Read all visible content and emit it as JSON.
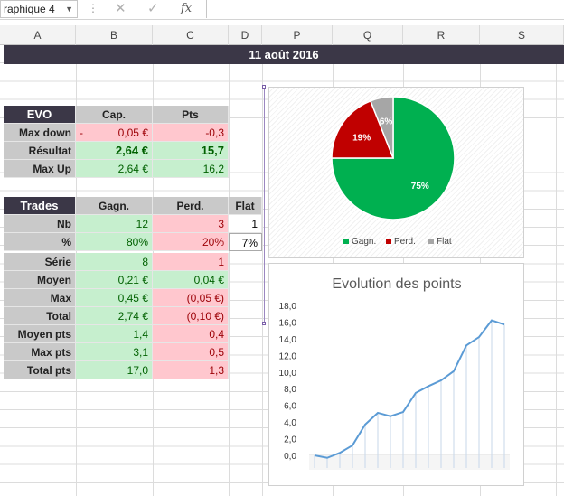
{
  "formula_bar": {
    "name_box": "raphique 4",
    "fx": "fx"
  },
  "columns": [
    "A",
    "B",
    "C",
    "D",
    "P",
    "Q",
    "R",
    "S"
  ],
  "title": "11 août 2016",
  "evo": {
    "header": [
      "EVO",
      "Cap.",
      "Pts"
    ],
    "rows": [
      {
        "label": "Max down",
        "prefix": "-",
        "cap": "0,05 €",
        "pts": "-0,3"
      },
      {
        "label": "Résultat",
        "cap": "2,64 €",
        "pts": "15,7"
      },
      {
        "label": "Max Up",
        "cap": "2,64 €",
        "pts": "16,2"
      }
    ]
  },
  "trades": {
    "header": [
      "Trades",
      "Gagn.",
      "Perd.",
      "Flat"
    ],
    "rows": [
      {
        "label": "Nb",
        "gagn": "12",
        "perd": "3",
        "flat": "1"
      },
      {
        "label": "%",
        "gagn": "80%",
        "perd": "20%",
        "flat": "7%"
      },
      {
        "label": "Série",
        "gagn": "8",
        "perd": "1",
        "flat": ""
      },
      {
        "label": "Moyen",
        "gagn": "0,21 €",
        "perd": "0,04 €",
        "flat": ""
      },
      {
        "label": "Max",
        "gagn": "0,45 €",
        "perd": "(0,05 €)",
        "flat": ""
      },
      {
        "label": "Total",
        "gagn": "2,74 €",
        "perd": "(0,10 €)",
        "flat": ""
      },
      {
        "label": "Moyen pts",
        "gagn": "1,4",
        "perd": "0,4",
        "flat": ""
      },
      {
        "label": "Max pts",
        "gagn": "3,1",
        "perd": "0,5",
        "flat": ""
      },
      {
        "label": "Total pts",
        "gagn": "17,0",
        "perd": "1,3",
        "flat": ""
      }
    ]
  },
  "colors": {
    "green": "#00b050",
    "red": "#c00000",
    "grey": "#a6a6a6",
    "line": "#5b9bd5",
    "band": "#3b3747"
  },
  "chart_data": [
    {
      "type": "pie",
      "title": "",
      "categories": [
        "Gagn.",
        "Perd.",
        "Flat"
      ],
      "values": [
        75,
        19,
        6
      ],
      "labels": [
        "75%",
        "19%",
        "6%"
      ],
      "legend": "bottom"
    },
    {
      "type": "line",
      "title": "Evolution des points",
      "y_ticks": [
        "0,0",
        "2,0",
        "4,0",
        "6,0",
        "8,0",
        "10,0",
        "12,0",
        "14,0",
        "16,0",
        "18,0"
      ],
      "ylim": [
        0,
        18
      ],
      "x": [
        1,
        2,
        3,
        4,
        5,
        6,
        7,
        8,
        9,
        10,
        11,
        12,
        13,
        14,
        15,
        16
      ],
      "values": [
        0.0,
        -0.3,
        0.3,
        1.2,
        3.7,
        5.1,
        4.7,
        5.2,
        7.5,
        8.3,
        9.0,
        10.1,
        13.2,
        14.2,
        16.2,
        15.7
      ],
      "drop_lines": true
    }
  ]
}
